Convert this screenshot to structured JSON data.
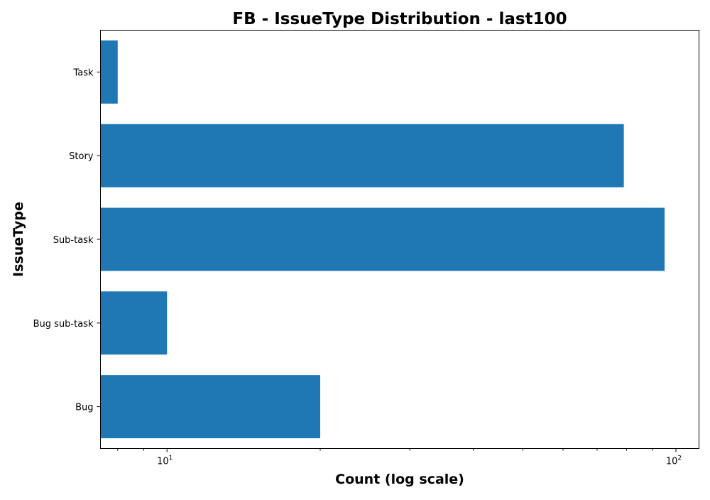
{
  "chart_data": {
    "type": "bar",
    "orientation": "horizontal",
    "title": "FB - IssueType Distribution - last100",
    "xlabel": "Count (log scale)",
    "ylabel": "IssueType",
    "x_scale": "log",
    "xlim": [
      7.4,
      111
    ],
    "categories": [
      "Bug",
      "Bug sub-task",
      "Sub-task",
      "Story",
      "Task"
    ],
    "values": [
      20,
      10,
      95,
      79,
      8
    ],
    "major_ticks": [
      {
        "value": 10,
        "base": "10",
        "exponent": "1"
      },
      {
        "value": 100,
        "base": "10",
        "exponent": "2"
      }
    ],
    "minor_ticks": [
      8,
      9,
      20,
      30,
      40,
      50,
      60,
      70,
      80,
      90
    ],
    "bar_color": "#1f77b4",
    "grid": false,
    "legend": "none"
  }
}
